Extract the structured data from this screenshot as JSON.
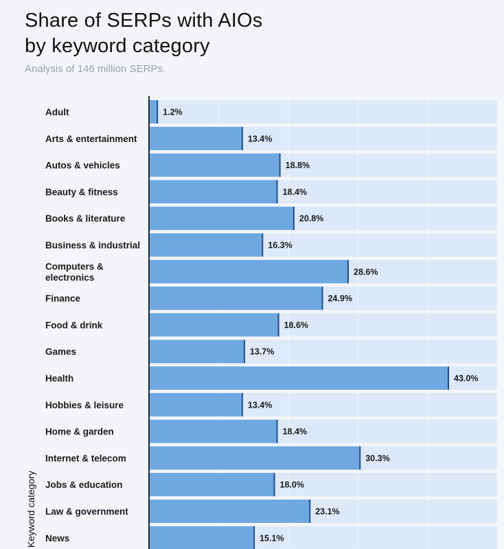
{
  "header": {
    "title_line1": "Share of SERPs with AIOs",
    "title_line2": "by keyword category",
    "subtitle": "Analysis of 146 million SERPs."
  },
  "colors": {
    "bar": "#6fa8e0",
    "bar_edge": "#1f4f8a",
    "track": "#dde9f8",
    "axis": "#1a2a40",
    "grid": "#ffffff"
  },
  "chart_data": {
    "type": "bar",
    "orientation": "horizontal",
    "title": "Share of SERPs with AIOs by keyword category",
    "subtitle": "Analysis of 146 million SERPs.",
    "ylabel": "Keyword category",
    "xlabel": "",
    "xlim": [
      0,
      50
    ],
    "grid": true,
    "value_suffix": "%",
    "categories": [
      [
        "Adult"
      ],
      [
        "Arts & entertainment"
      ],
      [
        "Autos & vehicles"
      ],
      [
        "Beauty & fitness"
      ],
      [
        "Books & literature"
      ],
      [
        "Business & industrial"
      ],
      [
        "Computers &",
        "electronics"
      ],
      [
        "Finance"
      ],
      [
        "Food & drink"
      ],
      [
        "Games"
      ],
      [
        "Health"
      ],
      [
        "Hobbies & leisure"
      ],
      [
        "Home & garden"
      ],
      [
        "Internet & telecom"
      ],
      [
        "Jobs & education"
      ],
      [
        "Law & government"
      ],
      [
        "News"
      ]
    ],
    "values": [
      1.2,
      13.4,
      18.8,
      18.4,
      20.8,
      16.3,
      28.6,
      24.9,
      18.6,
      13.7,
      43.0,
      13.4,
      18.4,
      30.3,
      18.0,
      23.1,
      15.1
    ]
  }
}
